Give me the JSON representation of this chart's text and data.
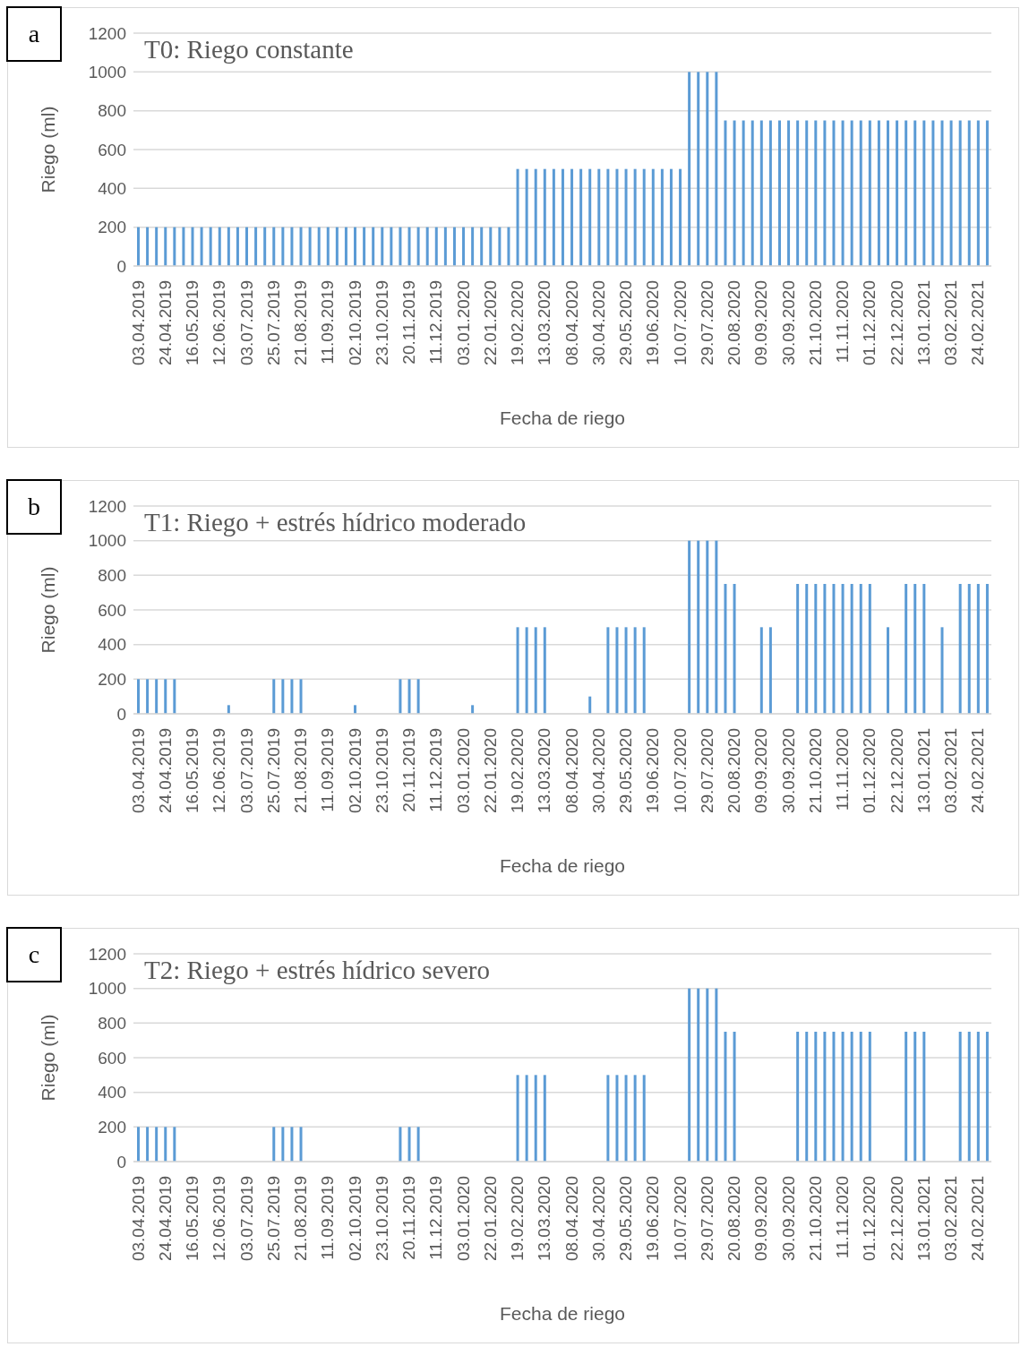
{
  "chart_data": [
    {
      "type": "bar",
      "title": "T0: Riego constante",
      "xlabel": "Fecha de riego",
      "ylabel": "Riego (ml)",
      "annotations": [
        "a"
      ],
      "categories": [
        "03.04.2019",
        null,
        null,
        "24.04.2019",
        null,
        null,
        "16.05.2019",
        null,
        null,
        "12.06.2019",
        null,
        null,
        "03.07.2019",
        null,
        null,
        "25.07.2019",
        null,
        null,
        "21.08.2019",
        null,
        null,
        "11.09.2019",
        null,
        null,
        "02.10.2019",
        null,
        null,
        "23.10.2019",
        null,
        null,
        "20.11.2019",
        null,
        null,
        "11.12.2019",
        null,
        null,
        "03.01.2020",
        null,
        null,
        "22.01.2020",
        null,
        null,
        "19.02.2020",
        null,
        null,
        "13.03.2020",
        null,
        null,
        "08.04.2020",
        null,
        null,
        "30.04.2020",
        null,
        null,
        "29.05.2020",
        null,
        null,
        "19.06.2020",
        null,
        null,
        "10.07.2020",
        null,
        null,
        "29.07.2020",
        null,
        null,
        "20.08.2020",
        null,
        null,
        "09.09.2020",
        null,
        null,
        "30.09.2020",
        null,
        null,
        "21.10.2020",
        null,
        null,
        "11.11.2020",
        null,
        null,
        "01.12.2020",
        null,
        null,
        "22.12.2020",
        null,
        null,
        "13.01.2021",
        null,
        null,
        "03.02.2021",
        null,
        null,
        "24.02.2021",
        null
      ],
      "values": [
        200,
        200,
        200,
        200,
        200,
        200,
        200,
        200,
        200,
        200,
        200,
        200,
        200,
        200,
        200,
        200,
        200,
        200,
        200,
        200,
        200,
        200,
        200,
        200,
        200,
        200,
        200,
        200,
        200,
        200,
        200,
        200,
        200,
        200,
        200,
        200,
        200,
        200,
        200,
        200,
        200,
        200,
        500,
        500,
        500,
        500,
        500,
        500,
        500,
        500,
        500,
        500,
        500,
        500,
        500,
        500,
        500,
        500,
        500,
        500,
        500,
        1000,
        1000,
        1000,
        1000,
        750,
        750,
        750,
        750,
        750,
        750,
        750,
        750,
        750,
        750,
        750,
        750,
        750,
        750,
        750,
        750,
        750,
        750,
        750,
        750,
        750,
        750,
        750,
        750,
        750,
        750,
        750,
        750,
        750,
        750
      ],
      "color": "#5b9bd5",
      "ylim": [
        0,
        1200
      ],
      "yticks": [
        0,
        200,
        400,
        600,
        800,
        1000,
        1200
      ],
      "grid": "y",
      "legend": false
    },
    {
      "type": "bar",
      "title": "T1: Riego + estrés hídrico moderado",
      "xlabel": "Fecha de riego",
      "ylabel": "Riego (ml)",
      "annotations": [
        "b"
      ],
      "categories": [
        "03.04.2019",
        null,
        null,
        "24.04.2019",
        null,
        null,
        "16.05.2019",
        null,
        null,
        "12.06.2019",
        null,
        null,
        "03.07.2019",
        null,
        null,
        "25.07.2019",
        null,
        null,
        "21.08.2019",
        null,
        null,
        "11.09.2019",
        null,
        null,
        "02.10.2019",
        null,
        null,
        "23.10.2019",
        null,
        null,
        "20.11.2019",
        null,
        null,
        "11.12.2019",
        null,
        null,
        "03.01.2020",
        null,
        null,
        "22.01.2020",
        null,
        null,
        "19.02.2020",
        null,
        null,
        "13.03.2020",
        null,
        null,
        "08.04.2020",
        null,
        null,
        "30.04.2020",
        null,
        null,
        "29.05.2020",
        null,
        null,
        "19.06.2020",
        null,
        null,
        "10.07.2020",
        null,
        null,
        "29.07.2020",
        null,
        null,
        "20.08.2020",
        null,
        null,
        "09.09.2020",
        null,
        null,
        "30.09.2020",
        null,
        null,
        "21.10.2020",
        null,
        null,
        "11.11.2020",
        null,
        null,
        "01.12.2020",
        null,
        null,
        "22.12.2020",
        null,
        null,
        "13.01.2021",
        null,
        null,
        "03.02.2021",
        null,
        null,
        "24.02.2021",
        null
      ],
      "values": [
        200,
        200,
        200,
        200,
        200,
        null,
        null,
        null,
        null,
        null,
        50,
        null,
        null,
        null,
        null,
        200,
        200,
        200,
        200,
        null,
        null,
        null,
        null,
        null,
        50,
        null,
        null,
        null,
        null,
        200,
        200,
        200,
        null,
        null,
        null,
        null,
        null,
        50,
        null,
        null,
        null,
        null,
        500,
        500,
        500,
        500,
        null,
        null,
        null,
        null,
        100,
        null,
        500,
        500,
        500,
        500,
        500,
        null,
        null,
        null,
        null,
        1000,
        1000,
        1000,
        1000,
        750,
        750,
        null,
        null,
        500,
        500,
        null,
        null,
        750,
        750,
        750,
        750,
        750,
        750,
        750,
        750,
        750,
        null,
        500,
        null,
        750,
        750,
        750,
        null,
        500,
        null,
        750,
        750,
        750,
        750
      ],
      "color": "#5b9bd5",
      "ylim": [
        0,
        1200
      ],
      "yticks": [
        0,
        200,
        400,
        600,
        800,
        1000,
        1200
      ],
      "grid": "y",
      "legend": false
    },
    {
      "type": "bar",
      "title": "T2: Riego + estrés hídrico severo",
      "xlabel": "Fecha de riego",
      "ylabel": "Riego (ml)",
      "annotations": [
        "c"
      ],
      "categories": [
        "03.04.2019",
        null,
        null,
        "24.04.2019",
        null,
        null,
        "16.05.2019",
        null,
        null,
        "12.06.2019",
        null,
        null,
        "03.07.2019",
        null,
        null,
        "25.07.2019",
        null,
        null,
        "21.08.2019",
        null,
        null,
        "11.09.2019",
        null,
        null,
        "02.10.2019",
        null,
        null,
        "23.10.2019",
        null,
        null,
        "20.11.2019",
        null,
        null,
        "11.12.2019",
        null,
        null,
        "03.01.2020",
        null,
        null,
        "22.01.2020",
        null,
        null,
        "19.02.2020",
        null,
        null,
        "13.03.2020",
        null,
        null,
        "08.04.2020",
        null,
        null,
        "30.04.2020",
        null,
        null,
        "29.05.2020",
        null,
        null,
        "19.06.2020",
        null,
        null,
        "10.07.2020",
        null,
        null,
        "29.07.2020",
        null,
        null,
        "20.08.2020",
        null,
        null,
        "09.09.2020",
        null,
        null,
        "30.09.2020",
        null,
        null,
        "21.10.2020",
        null,
        null,
        "11.11.2020",
        null,
        null,
        "01.12.2020",
        null,
        null,
        "22.12.2020",
        null,
        null,
        "13.01.2021",
        null,
        null,
        "03.02.2021",
        null,
        null,
        "24.02.2021",
        null
      ],
      "values": [
        200,
        200,
        200,
        200,
        200,
        null,
        null,
        null,
        null,
        null,
        null,
        null,
        null,
        null,
        null,
        200,
        200,
        200,
        200,
        null,
        null,
        null,
        null,
        null,
        null,
        null,
        null,
        null,
        null,
        200,
        200,
        200,
        null,
        null,
        null,
        null,
        null,
        null,
        null,
        null,
        null,
        null,
        500,
        500,
        500,
        500,
        null,
        null,
        null,
        null,
        null,
        null,
        500,
        500,
        500,
        500,
        500,
        null,
        null,
        null,
        null,
        1000,
        1000,
        1000,
        1000,
        750,
        750,
        null,
        null,
        null,
        null,
        null,
        null,
        750,
        750,
        750,
        750,
        750,
        750,
        750,
        750,
        750,
        null,
        null,
        null,
        750,
        750,
        750,
        null,
        null,
        null,
        750,
        750,
        750,
        750
      ],
      "color": "#5b9bd5",
      "ylim": [
        0,
        1200
      ],
      "yticks": [
        0,
        200,
        400,
        600,
        800,
        1000,
        1200
      ],
      "grid": "y",
      "legend": false
    }
  ]
}
